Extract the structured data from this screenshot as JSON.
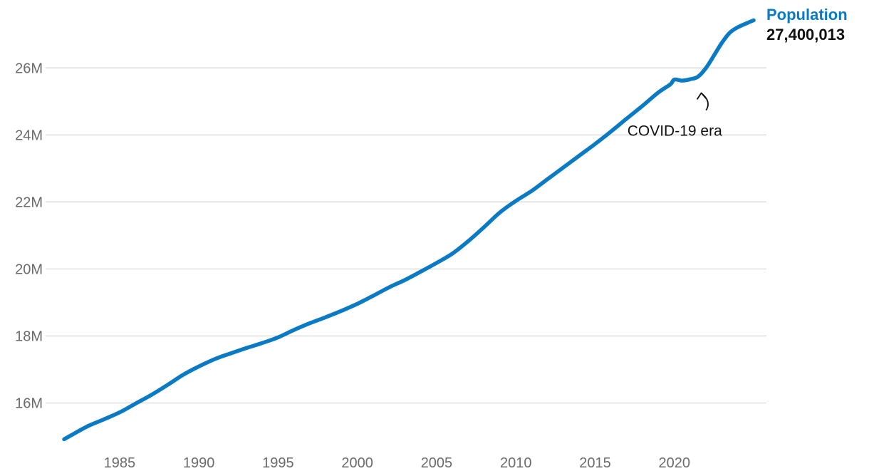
{
  "chart_data": {
    "type": "line",
    "title": "",
    "xlabel": "",
    "ylabel": "",
    "xlim": [
      1981.5,
      2025
    ],
    "ylim": [
      14.8,
      27.6
    ],
    "grid": true,
    "x_ticks": [
      {
        "value": 1985,
        "label": "1985"
      },
      {
        "value": 1990,
        "label": "1990"
      },
      {
        "value": 1995,
        "label": "1995"
      },
      {
        "value": 2000,
        "label": "2000"
      },
      {
        "value": 2005,
        "label": "2005"
      },
      {
        "value": 2010,
        "label": "2010"
      },
      {
        "value": 2015,
        "label": "2015"
      },
      {
        "value": 2020,
        "label": "2020"
      }
    ],
    "y_ticks": [
      {
        "value": 16,
        "label": "16M"
      },
      {
        "value": 18,
        "label": "18M"
      },
      {
        "value": 20,
        "label": "20M"
      },
      {
        "value": 22,
        "label": "22M"
      },
      {
        "value": 24,
        "label": "24M"
      },
      {
        "value": 26,
        "label": "26M"
      }
    ],
    "series": [
      {
        "name": "Population",
        "color": "#0a7ac4",
        "end_label": "27,400,013",
        "x": [
          1981.5,
          1982,
          1983,
          1984,
          1985,
          1986,
          1987,
          1988,
          1989,
          1990,
          1991,
          1992,
          1993,
          1994,
          1995,
          1996,
          1997,
          1998,
          1999,
          2000,
          2001,
          2002,
          2003,
          2004,
          2005,
          2006,
          2007,
          2008,
          2009,
          2010,
          2011,
          2012,
          2013,
          2014,
          2015,
          2016,
          2017,
          2018,
          2019,
          2019.75,
          2020,
          2020.5,
          2021,
          2021.5,
          2022,
          2022.5,
          2023,
          2023.5,
          2024,
          2024.5,
          2025
        ],
        "values": [
          14.92,
          15.05,
          15.31,
          15.51,
          15.72,
          15.98,
          16.24,
          16.53,
          16.84,
          17.09,
          17.31,
          17.48,
          17.64,
          17.79,
          17.96,
          18.18,
          18.38,
          18.56,
          18.75,
          18.96,
          19.2,
          19.45,
          19.67,
          19.92,
          20.18,
          20.46,
          20.83,
          21.25,
          21.69,
          22.03,
          22.33,
          22.68,
          23.03,
          23.38,
          23.73,
          24.1,
          24.49,
          24.87,
          25.27,
          25.51,
          25.65,
          25.62,
          25.66,
          25.74,
          26.0,
          26.37,
          26.75,
          27.05,
          27.21,
          27.32,
          27.42
        ]
      }
    ],
    "annotations": [
      {
        "text": "COVID-19 era",
        "x": 2022,
        "y": 24.65,
        "target_x": 2021.7,
        "target_y": 25.25
      }
    ]
  }
}
